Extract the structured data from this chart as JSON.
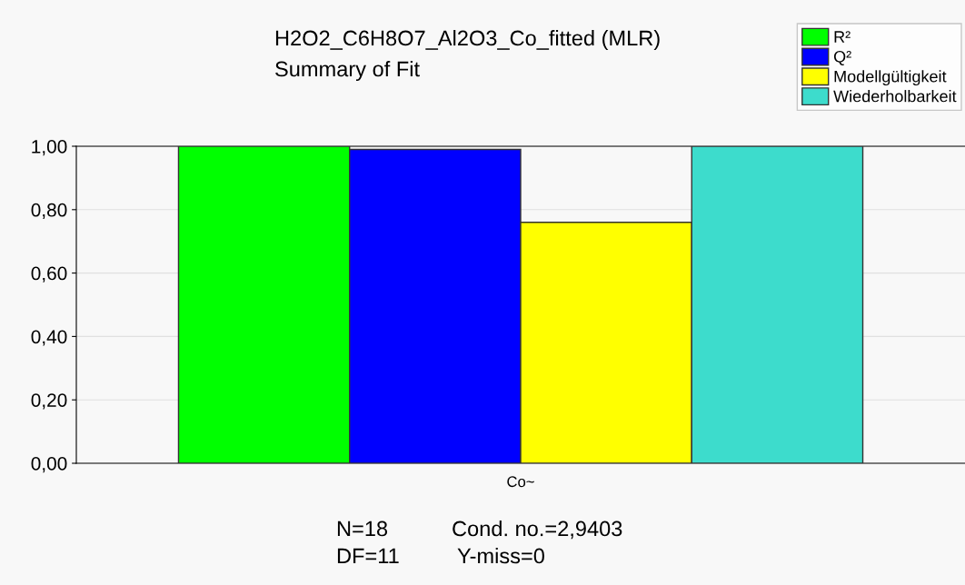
{
  "chart_data": {
    "type": "bar",
    "title": "H2O2_C6H8O7_Al2O3_Co_fitted (MLR)",
    "subtitle": "Summary of Fit",
    "categories": [
      "Co~"
    ],
    "series": [
      {
        "name": "R²",
        "color": "#00ff00",
        "values": [
          1.0
        ]
      },
      {
        "name": "Q²",
        "color": "#0000ff",
        "values": [
          0.99
        ]
      },
      {
        "name": "Modellgültigkeit",
        "color": "#ffff00",
        "values": [
          0.76
        ]
      },
      {
        "name": "Wiederholbarkeit",
        "color": "#3ddccc",
        "values": [
          1.0
        ]
      }
    ],
    "ylim": [
      0,
      1
    ],
    "yticks": [
      {
        "value": 0,
        "label": "0,00"
      },
      {
        "value": 0.2,
        "label": "0,20"
      },
      {
        "value": 0.4,
        "label": "0,40"
      },
      {
        "value": 0.6,
        "label": "0,60"
      },
      {
        "value": 0.8,
        "label": "0,80"
      },
      {
        "value": 1,
        "label": "1,00"
      }
    ],
    "grid": "y",
    "legend": "top right",
    "annotations": [
      "N=18",
      "Cond. no.=2,9403",
      "DF=11",
      "Y-miss=0"
    ]
  }
}
